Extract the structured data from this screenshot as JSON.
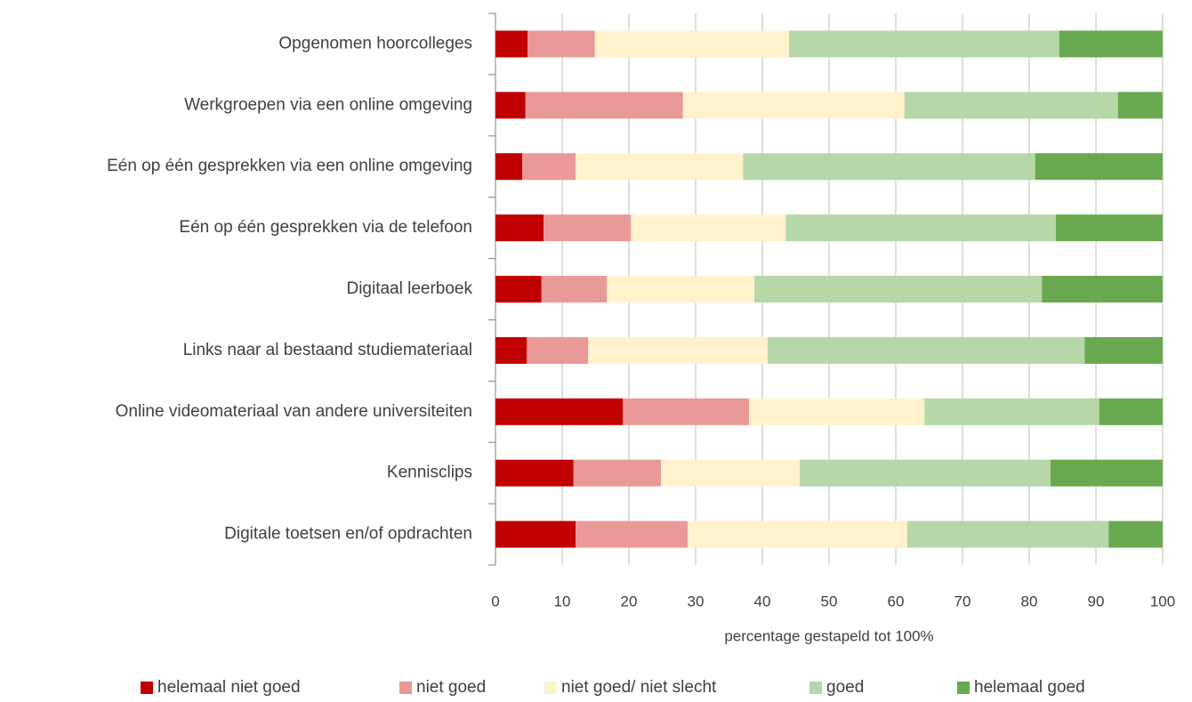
{
  "chart_data": {
    "type": "stacked_barh",
    "xlabel": "percentage gestapeld tot 100%",
    "categories": [
      "Opgenomen hoorcolleges",
      "Werkgroepen via een online omgeving",
      "Eén op één gesprekken via een online omgeving",
      "Eén op één gesprekken via de telefoon",
      "Digitaal leerboek",
      "Links naar al bestaand studiemateriaal",
      "Online videomateriaal van andere universiteiten",
      "Kennisclips",
      "Digitale toetsen en/of opdrachten"
    ],
    "series": [
      {
        "name": "helemaal niet goed",
        "color": "#c00000",
        "values": [
          4.8,
          4.5,
          4,
          7.2,
          6.9,
          4.7,
          19.1,
          11.7,
          12
        ]
      },
      {
        "name": "niet goed",
        "color": "#ea9999",
        "values": [
          10.1,
          23.6,
          8,
          13.1,
          9.8,
          9.2,
          18.9,
          13.1,
          16.8
        ]
      },
      {
        "name": "niet goed/ niet slecht",
        "color": "#fff2cc",
        "values": [
          29.1,
          33.2,
          25.1,
          23.2,
          22.1,
          26.9,
          26.3,
          20.8,
          32.9
        ]
      },
      {
        "name": "goed",
        "color": "#b6d7a8",
        "values": [
          40.5,
          32,
          43.8,
          40.5,
          43.1,
          47.5,
          26.2,
          37.6,
          30.2
        ]
      },
      {
        "name": "helemaal goed",
        "color": "#6aa84f",
        "values": [
          15.5,
          6.7,
          19.1,
          16,
          18.1,
          11.7,
          9.5,
          16.8,
          8.1
        ]
      }
    ],
    "xlim": [
      0,
      100
    ],
    "xticks": [
      0,
      10,
      20,
      30,
      40,
      50,
      60,
      70,
      80,
      90,
      100
    ],
    "grid": true,
    "legend": "bottom"
  }
}
